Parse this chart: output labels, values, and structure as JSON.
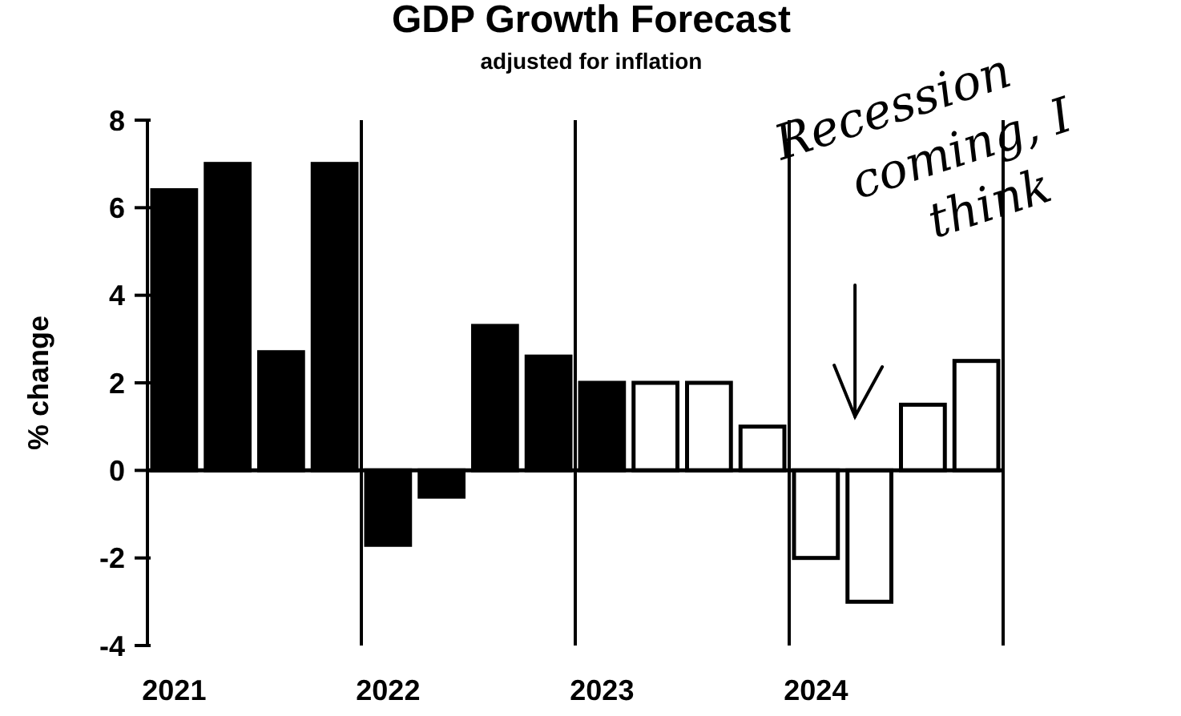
{
  "chart_data": {
    "type": "bar",
    "title": "GDP Growth Forecast",
    "subtitle": "adjusted for inflation",
    "ylabel": "% change",
    "categories": [
      "2021",
      null,
      null,
      null,
      "2022",
      null,
      null,
      null,
      "2023",
      null,
      null,
      null,
      "2024",
      null,
      null,
      null
    ],
    "series": [
      {
        "color": "#000000",
        "values": [
          6.4,
          7.0,
          2.7,
          7.0,
          -1.7,
          -0.6,
          3.3,
          2.6,
          2.0,
          null,
          null,
          null,
          null,
          null,
          null,
          null
        ]
      },
      {
        "color": "#ffffff",
        "values": [
          null,
          null,
          null,
          null,
          null,
          null,
          null,
          null,
          null,
          2.0,
          2.0,
          1.0,
          -2.0,
          -3.0,
          1.5,
          2.5
        ]
      }
    ],
    "ylim": [
      -4,
      8
    ],
    "yticks": [
      -4,
      -2,
      0,
      2,
      4,
      6,
      8
    ],
    "grid": false,
    "annotations": [
      "Recession coming, I think"
    ]
  }
}
